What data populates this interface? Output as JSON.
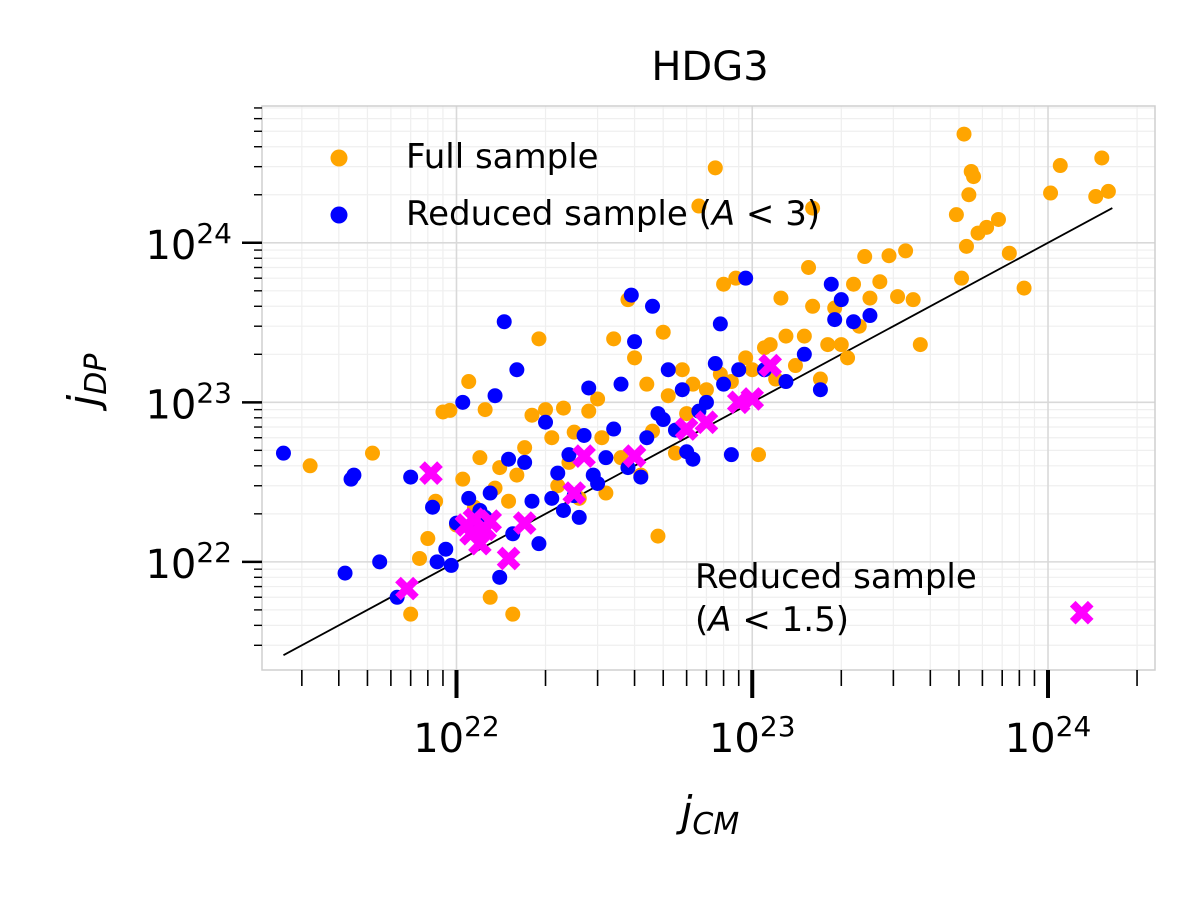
{
  "chart_data": {
    "type": "scatter",
    "title": "HDG3",
    "xlabel": {
      "main": "j",
      "sub": "CM"
    },
    "ylabel": {
      "main": "j",
      "sub": "DP"
    },
    "x_scale": "log",
    "y_scale": "log",
    "xlim": [
      2.2e+21,
      2.3e+24
    ],
    "ylim": [
      2.1e+21,
      7.2e+24
    ],
    "x_tick_values": [
      1e+22,
      1e+23,
      1e+24
    ],
    "x_tick_labels": [
      {
        "base": "10",
        "exp": "22"
      },
      {
        "base": "10",
        "exp": "23"
      },
      {
        "base": "10",
        "exp": "24"
      }
    ],
    "y_tick_values": [
      1e+22,
      1e+23,
      1e+24
    ],
    "y_tick_labels": [
      {
        "base": "10",
        "exp": "22"
      },
      {
        "base": "10",
        "exp": "23"
      },
      {
        "base": "10",
        "exp": "24"
      }
    ],
    "grid": true,
    "legend_position": "top-left",
    "colors": {
      "full": "#FFA500",
      "reduced": "#0000FF",
      "reduced15": "#FF00FF",
      "fit": "#000000"
    },
    "series": [
      {
        "name": "Full sample",
        "marker": "circle",
        "points": [
          [
            3.2e+21,
            4e+22
          ],
          [
            5.2e+21,
            4.8e+22
          ],
          [
            7e+21,
            4.7e+21
          ],
          [
            7.5e+21,
            1.05e+22
          ],
          [
            8e+21,
            1.4e+22
          ],
          [
            8.5e+21,
            2.4e+22
          ],
          [
            9e+21,
            8.7e+22
          ],
          [
            9.5e+21,
            8.9e+22
          ],
          [
            1e+22,
            1.7e+22
          ],
          [
            1.05e+22,
            3.3e+22
          ],
          [
            1.1e+22,
            1.35e+23
          ],
          [
            1.15e+22,
            2.2e+22
          ],
          [
            1.2e+22,
            4.5e+22
          ],
          [
            1.25e+22,
            9e+22
          ],
          [
            1.3e+22,
            6e+21
          ],
          [
            1.35e+22,
            2.9e+22
          ],
          [
            1.4e+22,
            3.9e+22
          ],
          [
            1.5e+22,
            2.4e+22
          ],
          [
            1.55e+22,
            4.7e+21
          ],
          [
            1.6e+22,
            3.5e+22
          ],
          [
            1.7e+22,
            5.2e+22
          ],
          [
            1.8e+22,
            8.3e+22
          ],
          [
            1.9e+22,
            2.5e+23
          ],
          [
            2e+22,
            9e+22
          ],
          [
            2.1e+22,
            6e+22
          ],
          [
            2.2e+22,
            3e+22
          ],
          [
            2.3e+22,
            9.2e+22
          ],
          [
            2.4e+22,
            4.2e+22
          ],
          [
            2.5e+22,
            6.5e+22
          ],
          [
            2.6e+22,
            2.5e+22
          ],
          [
            2.8e+22,
            8.8e+22
          ],
          [
            3e+22,
            1.05e+23
          ],
          [
            3.1e+22,
            6e+22
          ],
          [
            3.2e+22,
            2.7e+22
          ],
          [
            3.4e+22,
            2.5e+23
          ],
          [
            3.6e+22,
            4.5e+22
          ],
          [
            3.8e+22,
            4.4e+23
          ],
          [
            4e+22,
            1.9e+23
          ],
          [
            4.2e+22,
            3.5e+22
          ],
          [
            4.4e+22,
            1.3e+23
          ],
          [
            4.6e+22,
            6.6e+22
          ],
          [
            4.8e+22,
            1.45e+22
          ],
          [
            5e+22,
            2.75e+23
          ],
          [
            5.2e+22,
            1.1e+23
          ],
          [
            5.5e+22,
            4.8e+22
          ],
          [
            5.8e+22,
            1.6e+23
          ],
          [
            6e+22,
            8.5e+22
          ],
          [
            6.3e+22,
            1.3e+23
          ],
          [
            6.6e+22,
            1.7e+24
          ],
          [
            7e+22,
            1.2e+23
          ],
          [
            7.5e+22,
            2.95e+24
          ],
          [
            7.8e+22,
            1.5e+23
          ],
          [
            8e+22,
            5.5e+23
          ],
          [
            8.5e+22,
            1.35e+23
          ],
          [
            8.8e+22,
            6e+23
          ],
          [
            9.5e+22,
            1.9e+23
          ],
          [
            1e+23,
            1.6e+23
          ],
          [
            1.05e+23,
            4.7e+22
          ],
          [
            1.1e+23,
            2.2e+23
          ],
          [
            1.15e+23,
            2.3e+23
          ],
          [
            1.2e+23,
            1.4e+23
          ],
          [
            1.25e+23,
            4.5e+23
          ],
          [
            1.3e+23,
            2.6e+23
          ],
          [
            1.4e+23,
            1.7e+23
          ],
          [
            1.5e+23,
            2.6e+23
          ],
          [
            1.55e+23,
            7e+23
          ],
          [
            1.6e+23,
            4e+23
          ],
          [
            1.6e+23,
            1.65e+24
          ],
          [
            1.7e+23,
            1.4e+23
          ],
          [
            1.8e+23,
            2.3e+23
          ],
          [
            1.9e+23,
            3.9e+23
          ],
          [
            2e+23,
            2.3e+23
          ],
          [
            2.1e+23,
            1.9e+23
          ],
          [
            2.2e+23,
            5.5e+23
          ],
          [
            2.3e+23,
            3e+23
          ],
          [
            2.4e+23,
            8.2e+23
          ],
          [
            2.5e+23,
            4.5e+23
          ],
          [
            2.7e+23,
            5.7e+23
          ],
          [
            2.9e+23,
            8.3e+23
          ],
          [
            3.1e+23,
            4.6e+23
          ],
          [
            3.3e+23,
            8.9e+23
          ],
          [
            3.5e+23,
            4.4e+23
          ],
          [
            3.7e+23,
            2.3e+23
          ],
          [
            4.9e+23,
            1.5e+24
          ],
          [
            5.1e+23,
            6e+23
          ],
          [
            5.2e+23,
            4.8e+24
          ],
          [
            5.3e+23,
            9.5e+23
          ],
          [
            5.4e+23,
            2e+24
          ],
          [
            5.5e+23,
            2.8e+24
          ],
          [
            5.6e+23,
            2.6e+24
          ],
          [
            5.8e+23,
            1.15e+24
          ],
          [
            6.2e+23,
            1.25e+24
          ],
          [
            6.8e+23,
            1.4e+24
          ],
          [
            7.4e+23,
            8.6e+23
          ],
          [
            8.3e+23,
            5.2e+23
          ],
          [
            1.02e+24,
            2.05e+24
          ],
          [
            1.1e+24,
            3.05e+24
          ],
          [
            1.45e+24,
            1.95e+24
          ],
          [
            1.52e+24,
            3.4e+24
          ],
          [
            1.6e+24,
            2.1e+24
          ]
        ]
      },
      {
        "name": "Reduced sample (A < 3)",
        "label_parts": [
          "Reduced sample (",
          "A",
          " < 3)"
        ],
        "marker": "circle",
        "points": [
          [
            2.6e+21,
            4.8e+22
          ],
          [
            4.2e+21,
            8.5e+21
          ],
          [
            4.4e+21,
            3.3e+22
          ],
          [
            4.5e+21,
            3.5e+22
          ],
          [
            5.5e+21,
            1e+22
          ],
          [
            6.3e+21,
            6e+21
          ],
          [
            7e+21,
            3.4e+22
          ],
          [
            8.3e+21,
            2.2e+22
          ],
          [
            8.6e+21,
            1e+22
          ],
          [
            9.2e+21,
            1.2e+22
          ],
          [
            9.6e+21,
            9.5e+21
          ],
          [
            1e+22,
            1.75e+22
          ],
          [
            1.05e+22,
            1e+23
          ],
          [
            1.1e+22,
            2.5e+22
          ],
          [
            1.15e+22,
            1.6e+22
          ],
          [
            1.2e+22,
            2.1e+22
          ],
          [
            1.25e+22,
            1.9e+22
          ],
          [
            1.3e+22,
            2.7e+22
          ],
          [
            1.35e+22,
            1.1e+23
          ],
          [
            1.4e+22,
            8e+21
          ],
          [
            1.45e+22,
            3.2e+23
          ],
          [
            1.5e+22,
            4.4e+22
          ],
          [
            1.55e+22,
            1.5e+22
          ],
          [
            1.6e+22,
            1.6e+23
          ],
          [
            1.7e+22,
            4.2e+22
          ],
          [
            1.8e+22,
            2.4e+22
          ],
          [
            1.9e+22,
            1.3e+22
          ],
          [
            2e+22,
            7.5e+22
          ],
          [
            2.1e+22,
            2.5e+22
          ],
          [
            2.2e+22,
            3.6e+22
          ],
          [
            2.3e+22,
            2.1e+22
          ],
          [
            2.4e+22,
            4.7e+22
          ],
          [
            2.5e+22,
            2.6e+22
          ],
          [
            2.6e+22,
            1.9e+22
          ],
          [
            2.7e+22,
            6.2e+22
          ],
          [
            2.8e+22,
            1.23e+23
          ],
          [
            2.9e+22,
            3.5e+22
          ],
          [
            3e+22,
            3.1e+22
          ],
          [
            3.2e+22,
            4.5e+22
          ],
          [
            3.4e+22,
            6.8e+22
          ],
          [
            3.6e+22,
            1.3e+23
          ],
          [
            3.8e+22,
            3.9e+22
          ],
          [
            3.9e+22,
            4.7e+23
          ],
          [
            4e+22,
            2.4e+23
          ],
          [
            4.2e+22,
            3.4e+22
          ],
          [
            4.4e+22,
            6e+22
          ],
          [
            4.6e+22,
            4e+23
          ],
          [
            4.8e+22,
            8.5e+22
          ],
          [
            5e+22,
            7.8e+22
          ],
          [
            5.2e+22,
            1.6e+23
          ],
          [
            5.5e+22,
            6.7e+22
          ],
          [
            5.8e+22,
            1.2e+23
          ],
          [
            6e+22,
            4.9e+22
          ],
          [
            6.3e+22,
            4.4e+22
          ],
          [
            6.6e+22,
            8.8e+22
          ],
          [
            7e+22,
            1e+23
          ],
          [
            7.5e+22,
            1.75e+23
          ],
          [
            7.8e+22,
            3.1e+23
          ],
          [
            8e+22,
            1.3e+23
          ],
          [
            8.5e+22,
            4.7e+22
          ],
          [
            9e+22,
            1.6e+23
          ],
          [
            9.5e+22,
            6e+23
          ],
          [
            1.1e+23,
            1.6e+23
          ],
          [
            1.3e+23,
            1.35e+23
          ],
          [
            1.5e+23,
            2e+23
          ],
          [
            1.7e+23,
            1.2e+23
          ],
          [
            1.85e+23,
            5.5e+23
          ],
          [
            1.9e+23,
            3.3e+23
          ],
          [
            2e+23,
            4.4e+23
          ],
          [
            2.2e+23,
            3.2e+23
          ],
          [
            2.5e+23,
            3.5e+23
          ]
        ]
      },
      {
        "name": "Reduced sample (A < 1.5)",
        "label_parts": [
          "Reduced sample",
          "(",
          "A",
          " < 1.5)"
        ],
        "marker": "x",
        "points": [
          [
            6.8e+21,
            6.8e+21
          ],
          [
            8.2e+21,
            3.6e+22
          ],
          [
            1.08e+22,
            1.7e+22
          ],
          [
            1.12e+22,
            1.5e+22
          ],
          [
            1.15e+22,
            1.85e+22
          ],
          [
            1.2e+22,
            1.3e+22
          ],
          [
            1.25e+22,
            1.6e+22
          ],
          [
            1.3e+22,
            1.8e+22
          ],
          [
            1.5e+22,
            1.05e+22
          ],
          [
            1.7e+22,
            1.75e+22
          ],
          [
            2.5e+22,
            2.7e+22
          ],
          [
            2.7e+22,
            4.6e+22
          ],
          [
            4e+22,
            4.6e+22
          ],
          [
            6e+22,
            6.8e+22
          ],
          [
            7e+22,
            7.5e+22
          ],
          [
            9e+22,
            1e+23
          ],
          [
            1e+23,
            1.05e+23
          ],
          [
            1.15e+23,
            1.7e+23
          ],
          [
            1.3e+24,
            4.8e+21
          ]
        ]
      }
    ],
    "fit_line": {
      "x": [
        2.6e+21,
        1.65e+24
      ],
      "y": [
        2.6e+21,
        1.65e+24
      ]
    }
  }
}
